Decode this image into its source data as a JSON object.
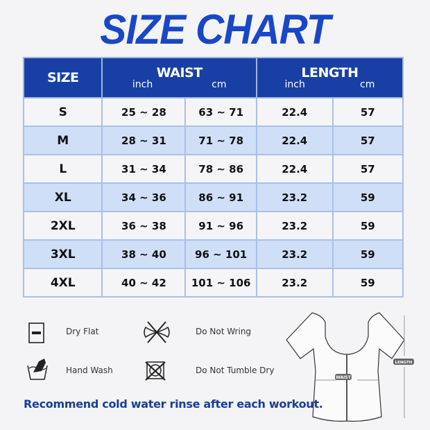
{
  "title": "SIZE CHART",
  "table": {
    "headers": {
      "size": "SIZE",
      "waist": "WAIST",
      "length": "LENGTH",
      "inch": "inch",
      "cm": "cm"
    },
    "rows": [
      {
        "size": "S",
        "waist_inch": "25 ~ 28",
        "waist_cm": "63 ~ 71",
        "length_inch": "22.4",
        "length_cm": "57"
      },
      {
        "size": "M",
        "waist_inch": "28 ~ 31",
        "waist_cm": "71 ~ 78",
        "length_inch": "22.4",
        "length_cm": "57"
      },
      {
        "size": "L",
        "waist_inch": "31 ~ 34",
        "waist_cm": "78 ~ 86",
        "length_inch": "22.4",
        "length_cm": "57"
      },
      {
        "size": "XL",
        "waist_inch": "34 ~ 36",
        "waist_cm": "86 ~ 91",
        "length_inch": "23.2",
        "length_cm": "59"
      },
      {
        "size": "2XL",
        "waist_inch": "36 ~ 38",
        "waist_cm": "91 ~ 96",
        "length_inch": "23.2",
        "length_cm": "59"
      },
      {
        "size": "3XL",
        "waist_inch": "38 ~ 40",
        "waist_cm": "96 ~ 101",
        "length_inch": "23.2",
        "length_cm": "59"
      },
      {
        "size": "4XL",
        "waist_inch": "40 ~ 42",
        "waist_cm": "101 ~ 106",
        "length_inch": "23.2",
        "length_cm": "59"
      }
    ]
  },
  "care": [
    {
      "icon": "dry-flat-icon",
      "label": "Dry Flat"
    },
    {
      "icon": "do-not-wring-icon",
      "label": "Do Not Wring"
    },
    {
      "icon": "hand-wash-icon",
      "label": "Hand Wash"
    },
    {
      "icon": "do-not-tumble-dry-icon",
      "label": "Do Not Tumble Dry"
    }
  ],
  "diagram": {
    "waist_label": "WAIST",
    "length_label": "LENGTH"
  },
  "note": "Recommend cold water rinse after each workout.",
  "colors": {
    "header": "#1840a4",
    "title": "#1848c6",
    "stripe": "#cfdff7",
    "note": "#1a3f96"
  }
}
